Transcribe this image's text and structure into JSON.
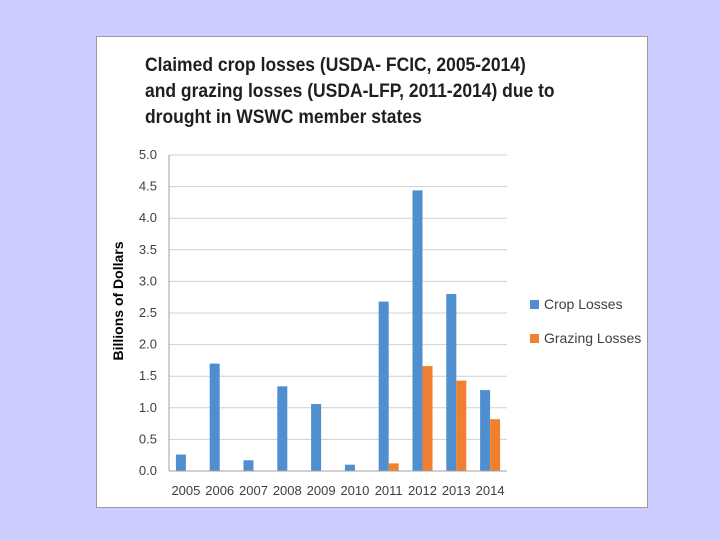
{
  "chart_data": {
    "type": "bar",
    "title": "Claimed crop losses (USDA- FCIC, 2005-2014) and grazing losses (USDA-LFP, 2011-2014) due to drought in WSWC member states",
    "xlabel": "",
    "ylabel": "Billions of Dollars",
    "ylim": [
      0,
      5
    ],
    "yticks": [
      "0.0",
      "0.5",
      "1.0",
      "1.5",
      "2.0",
      "2.5",
      "3.0",
      "3.5",
      "4.0",
      "4.5",
      "5.0"
    ],
    "categories": [
      "2005",
      "2006",
      "2007",
      "2008",
      "2009",
      "2010",
      "2011",
      "2012",
      "2013",
      "2014"
    ],
    "series": [
      {
        "name": "Crop Losses",
        "color": "#4f8fd0",
        "values": [
          0.26,
          1.7,
          0.17,
          1.34,
          1.06,
          0.1,
          2.68,
          4.44,
          2.8,
          1.28
        ]
      },
      {
        "name": "Grazing Losses",
        "color": "#f07f2f",
        "values": [
          null,
          null,
          null,
          null,
          null,
          null,
          0.12,
          1.66,
          1.43,
          0.82
        ]
      }
    ],
    "grid": true,
    "legend": "right"
  }
}
